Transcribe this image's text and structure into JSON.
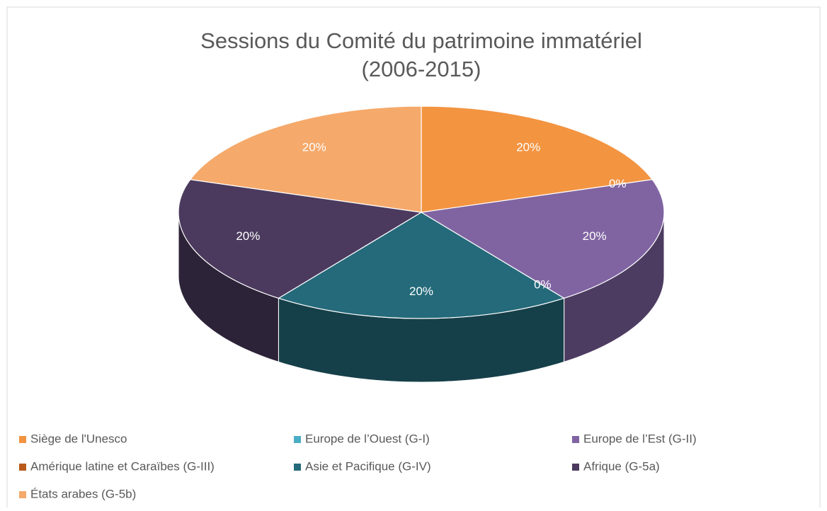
{
  "chart_data": {
    "type": "pie",
    "title": "Sessions du Comité du patrimoine immatériel",
    "subtitle": "(2006-2015)",
    "categories": [
      "Siège de l'Unesco",
      "Europe de l’Ouest (G-I)",
      "Europe de l’Est (G-II)",
      "Amérique latine et Caraïbes (G-III)",
      "Asie et Pacifique (G-IV)",
      "Afrique (G-5a)",
      "États arabes (G-5b)"
    ],
    "values": [
      20,
      0,
      20,
      0,
      20,
      20,
      20
    ],
    "value_labels": [
      "20%",
      "0%",
      "20%",
      "0%",
      "20%",
      "20%",
      "20%"
    ],
    "colors": [
      "#f39441",
      "#4bacc6",
      "#8064a2",
      "#b85a1b",
      "#246a7a",
      "#4b3a5e",
      "#f5a96a"
    ],
    "legend": "bottom"
  }
}
